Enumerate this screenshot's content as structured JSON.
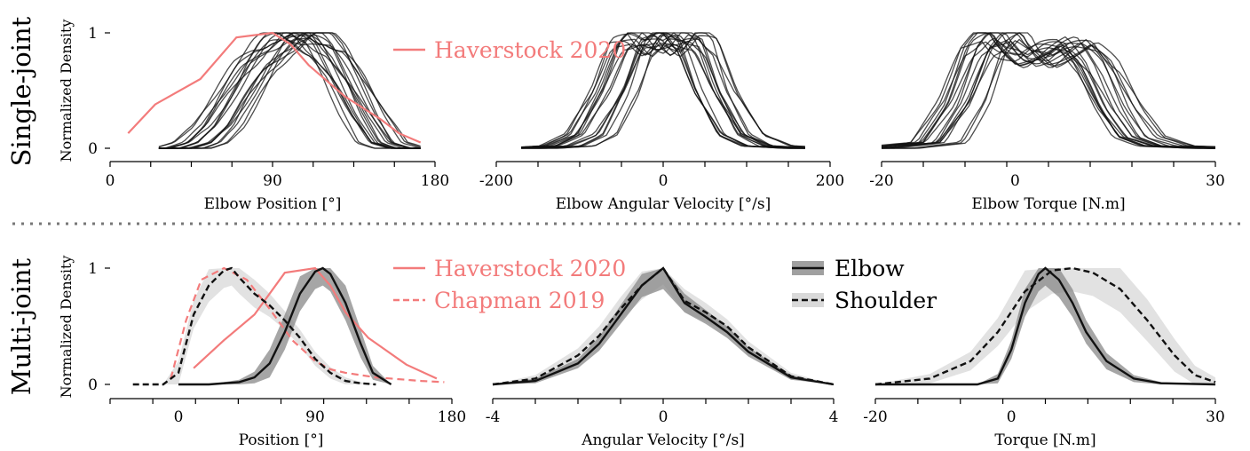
{
  "rows": [
    {
      "label": "Single-joint",
      "ylabel": "Normalized Density"
    },
    {
      "label": "Multi-joint",
      "ylabel": "Normalized Density"
    }
  ],
  "legend_top": {
    "items": [
      {
        "label": "Haverstock 2020",
        "color": "#f37b7b",
        "style": "solid"
      }
    ]
  },
  "legend_bottom_ref": {
    "items": [
      {
        "label": "Haverstock 2020",
        "color": "#f37b7b",
        "style": "solid"
      },
      {
        "label": "Chapman 2019",
        "color": "#f37b7b",
        "style": "dashed"
      }
    ]
  },
  "legend_bottom_joint": {
    "items": [
      {
        "label": "Elbow",
        "style": "solid"
      },
      {
        "label": "Shoulder",
        "style": "dashed"
      }
    ]
  },
  "colors": {
    "ref": "#f37b7b",
    "curve": "#111111",
    "elbow_band": "#888888",
    "shoulder_band": "#cfcfcf"
  },
  "chart_data": [
    {
      "id": "single-position",
      "type": "line",
      "xlabel": "Elbow Position [°]",
      "xlim": [
        0,
        180
      ],
      "ylim": [
        0,
        1
      ],
      "xticks": [
        "0",
        "90",
        "180"
      ],
      "yticks": [
        "0",
        "1"
      ],
      "subjects": 18,
      "mean_subject": {
        "x": [
          27,
          40,
          50,
          60,
          70,
          80,
          90,
          100,
          110,
          120,
          130,
          140,
          150,
          160,
          172
        ],
        "y": [
          0,
          0,
          0.05,
          0.2,
          0.45,
          0.7,
          0.88,
          0.98,
          0.97,
          0.85,
          0.6,
          0.3,
          0.05,
          0,
          0
        ]
      },
      "reference": {
        "name": "Haverstock 2020",
        "x": [
          10,
          25,
          50,
          70,
          90,
          100,
          110,
          130,
          150,
          160,
          172
        ],
        "y": [
          0.13,
          0.38,
          0.6,
          0.96,
          1.0,
          0.9,
          0.72,
          0.45,
          0.25,
          0.13,
          0.05
        ]
      }
    },
    {
      "id": "single-velocity",
      "type": "line",
      "xlabel": "Elbow Angular Velocity [°/s]",
      "xlim": [
        -200,
        200
      ],
      "ylim": [
        0,
        1
      ],
      "xticks": [
        "-200",
        "0",
        "200"
      ],
      "subjects": 18,
      "mean_subject": {
        "x": [
          -170,
          -120,
          -90,
          -60,
          -40,
          -20,
          0,
          20,
          40,
          60,
          90,
          120,
          170
        ],
        "y": [
          0,
          0.02,
          0.12,
          0.5,
          0.88,
          0.98,
          0.86,
          0.98,
          0.88,
          0.5,
          0.12,
          0.02,
          0
        ]
      }
    },
    {
      "id": "single-torque",
      "type": "line",
      "xlabel": "Elbow Torque [N.m]",
      "xlim": [
        -20,
        30
      ],
      "ylim": [
        0,
        1
      ],
      "xticks": [
        "-20",
        "0",
        "30"
      ],
      "subjects": 18,
      "mean_subject": {
        "x": [
          -20,
          -12,
          -8,
          -5,
          -2,
          0,
          3,
          6,
          9,
          12,
          15,
          18,
          22,
          30
        ],
        "y": [
          0,
          0.05,
          0.4,
          0.85,
          1.0,
          0.85,
          0.75,
          0.85,
          0.9,
          0.7,
          0.35,
          0.1,
          0.02,
          0
        ]
      }
    },
    {
      "id": "multi-position",
      "type": "line",
      "xlabel": "Position [°]",
      "xlim": [
        -45,
        180
      ],
      "ylim": [
        0,
        1
      ],
      "xticks": [
        "0",
        "90",
        "180"
      ],
      "yticks": [
        "0",
        "1"
      ],
      "series": [
        {
          "name": "Elbow",
          "style": "solid",
          "x": [
            0,
            20,
            40,
            50,
            60,
            70,
            80,
            90,
            95,
            100,
            110,
            120,
            128,
            140
          ],
          "y": [
            0,
            0,
            0.02,
            0.06,
            0.18,
            0.45,
            0.78,
            0.97,
            1.0,
            0.95,
            0.7,
            0.35,
            0.1,
            0
          ],
          "band_width": [
            0,
            0,
            0.02,
            0.05,
            0.12,
            0.15,
            0.15,
            0.15,
            0.15,
            0.15,
            0.15,
            0.12,
            0.06,
            0
          ]
        },
        {
          "name": "Shoulder",
          "style": "dashed",
          "x": [
            -30,
            -10,
            0,
            10,
            20,
            30,
            35,
            40,
            50,
            60,
            70,
            80,
            90,
            100,
            110,
            120,
            130
          ],
          "y": [
            0,
            0,
            0.1,
            0.6,
            0.85,
            0.98,
            1.0,
            0.92,
            0.78,
            0.68,
            0.55,
            0.4,
            0.22,
            0.1,
            0.03,
            0.01,
            0
          ],
          "band_width": [
            0,
            0,
            0.1,
            0.12,
            0.14,
            0.15,
            0.15,
            0.14,
            0.12,
            0.1,
            0.08,
            0.07,
            0.06,
            0.05,
            0.03,
            0.01,
            0
          ]
        }
      ],
      "references": [
        {
          "name": "Haverstock 2020",
          "style": "solid",
          "x": [
            10,
            30,
            50,
            70,
            90,
            100,
            110,
            125,
            150,
            170
          ],
          "y": [
            0.14,
            0.38,
            0.6,
            0.96,
            1.0,
            0.85,
            0.62,
            0.4,
            0.17,
            0.05
          ]
        },
        {
          "name": "Chapman 2019",
          "style": "dashed",
          "x": [
            -5,
            5,
            15,
            30,
            45,
            60,
            75,
            90,
            100,
            110,
            130,
            160,
            175
          ],
          "y": [
            0.05,
            0.55,
            0.9,
            1.0,
            0.9,
            0.65,
            0.38,
            0.2,
            0.13,
            0.1,
            0.06,
            0.03,
            0.02
          ]
        }
      ]
    },
    {
      "id": "multi-velocity",
      "type": "line",
      "xlabel": "Angular Velocity [°/s]",
      "xlim": [
        -4,
        4
      ],
      "ylim": [
        0,
        1
      ],
      "xticks": [
        "-4",
        "0",
        "4"
      ],
      "series": [
        {
          "name": "Elbow",
          "style": "solid",
          "x": [
            -4,
            -3,
            -2,
            -1.5,
            -1,
            -0.5,
            0,
            0.5,
            1,
            1.5,
            2,
            3,
            4
          ],
          "y": [
            0,
            0.03,
            0.18,
            0.35,
            0.6,
            0.85,
            1.0,
            0.7,
            0.58,
            0.45,
            0.28,
            0.06,
            0
          ],
          "band_width": [
            0,
            0.02,
            0.04,
            0.06,
            0.08,
            0.1,
            0.18,
            0.08,
            0.06,
            0.05,
            0.04,
            0.02,
            0
          ]
        },
        {
          "name": "Shoulder",
          "style": "dashed",
          "x": [
            -4,
            -3,
            -2,
            -1.5,
            -1,
            -0.5,
            0,
            0.5,
            1,
            1.5,
            2,
            3,
            4
          ],
          "y": [
            0,
            0.05,
            0.25,
            0.42,
            0.65,
            0.85,
            1.0,
            0.72,
            0.62,
            0.5,
            0.32,
            0.07,
            0
          ],
          "band_width": [
            0,
            0.03,
            0.06,
            0.08,
            0.1,
            0.12,
            0.14,
            0.1,
            0.08,
            0.06,
            0.05,
            0.03,
            0
          ]
        }
      ]
    },
    {
      "id": "multi-torque",
      "type": "line",
      "xlabel": "Torque [N.m]",
      "xlim": [
        -20,
        30
      ],
      "ylim": [
        0,
        1
      ],
      "xticks": [
        "-20",
        "0",
        "30"
      ],
      "series": [
        {
          "name": "Elbow",
          "style": "solid",
          "x": [
            -20,
            -5,
            -2,
            0,
            2,
            4,
            5,
            7,
            9,
            11,
            14,
            18,
            22,
            30
          ],
          "y": [
            0,
            0,
            0.05,
            0.3,
            0.7,
            0.95,
            1.0,
            0.9,
            0.7,
            0.45,
            0.2,
            0.05,
            0.01,
            0
          ],
          "band_width": [
            0,
            0,
            0.04,
            0.08,
            0.12,
            0.15,
            0.15,
            0.15,
            0.12,
            0.1,
            0.07,
            0.03,
            0.01,
            0
          ]
        },
        {
          "name": "Shoulder",
          "style": "dashed",
          "x": [
            -20,
            -12,
            -6,
            -2,
            2,
            6,
            9,
            12,
            16,
            20,
            24,
            27,
            30
          ],
          "y": [
            0,
            0.05,
            0.2,
            0.45,
            0.8,
            0.98,
            1.0,
            0.96,
            0.82,
            0.55,
            0.25,
            0.08,
            0.02
          ],
          "band_width": [
            0,
            0.04,
            0.08,
            0.12,
            0.18,
            0.2,
            0.2,
            0.2,
            0.2,
            0.18,
            0.14,
            0.08,
            0.04
          ]
        }
      ]
    }
  ]
}
